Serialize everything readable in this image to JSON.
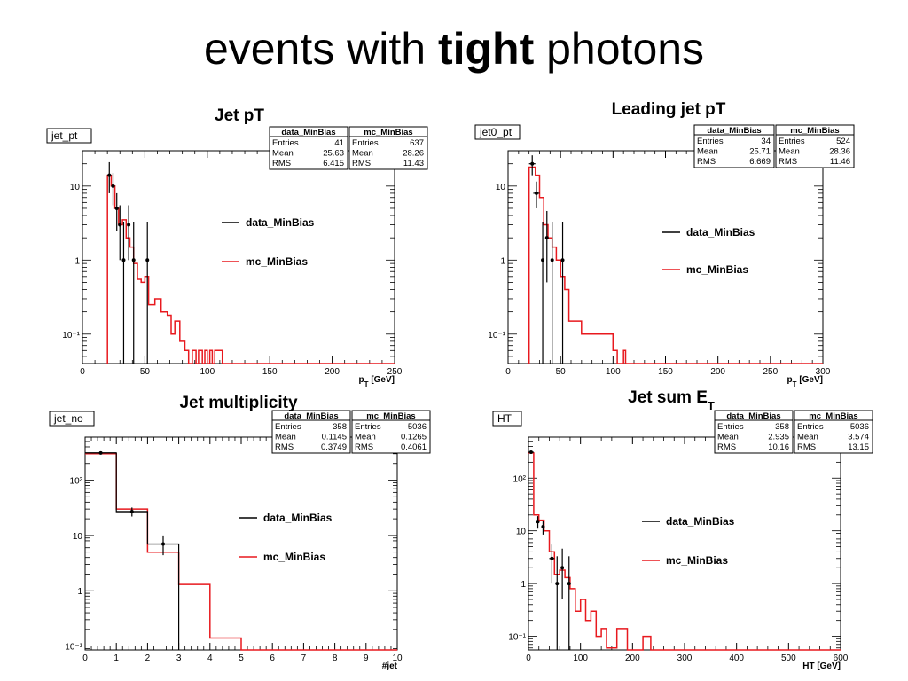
{
  "slide": {
    "title_prefix": "events with ",
    "title_bold": "tight",
    "title_suffix": " photons"
  },
  "colors": {
    "data": "#000000",
    "mc": "#e8191e"
  },
  "chart_data": [
    {
      "id": "jet_pt",
      "type": "histogram",
      "plot_title": "Jet pT",
      "plot_title_sub": "",
      "name": "jet_pt",
      "xlabel": "p_T [GeV]",
      "xlim": [
        0,
        250
      ],
      "xticks": [
        0,
        50,
        100,
        150,
        200,
        250
      ],
      "ylog": true,
      "ylim": [
        0.04,
        30
      ],
      "yticks": [
        {
          "v": 0.1,
          "label": "10⁻¹"
        },
        {
          "v": 1,
          "label": "1"
        },
        {
          "v": 10,
          "label": "10"
        }
      ],
      "legend": [
        "data_MinBias",
        "mc_MinBias"
      ],
      "stats": [
        {
          "name": "data_MinBias",
          "entries": "41",
          "mean": "25.63",
          "rms": "6.415"
        },
        {
          "name": "mc_MinBias",
          "entries": "637",
          "mean": "28.26",
          "rms": "11.43"
        }
      ],
      "mc_steps": [
        [
          20,
          0.04
        ],
        [
          20,
          14
        ],
        [
          23,
          10
        ],
        [
          26,
          5
        ],
        [
          29,
          3
        ],
        [
          32,
          3.5
        ],
        [
          35,
          2
        ],
        [
          38,
          1.5
        ],
        [
          41,
          0.9
        ],
        [
          44,
          0.55
        ],
        [
          47,
          0.5
        ],
        [
          50,
          0.6
        ],
        [
          53,
          0.25
        ],
        [
          58,
          0.3
        ],
        [
          63,
          0.2
        ],
        [
          68,
          0.18
        ],
        [
          71,
          0.1
        ],
        [
          74,
          0.15
        ],
        [
          78,
          0.08
        ],
        [
          82,
          0.06
        ],
        [
          85,
          0.04
        ],
        [
          88,
          0.06
        ],
        [
          91,
          0.04
        ],
        [
          93,
          0.06
        ],
        [
          96,
          0.04
        ],
        [
          98,
          0.06
        ],
        [
          100,
          0.04
        ],
        [
          102,
          0.06
        ],
        [
          104,
          0.04
        ],
        [
          106,
          0.06
        ],
        [
          112,
          0.04
        ],
        [
          250,
          0.04
        ]
      ],
      "data_points": [
        {
          "x": 21.5,
          "xerr": 1.5,
          "y": 14,
          "yerr_lo": 6,
          "yerr_hi": 7
        },
        {
          "x": 24.5,
          "xerr": 1.5,
          "y": 10,
          "yerr_lo": 4.5,
          "yerr_hi": 5
        },
        {
          "x": 27.5,
          "xerr": 1.5,
          "y": 5,
          "yerr_lo": 2.5,
          "yerr_hi": 3
        },
        {
          "x": 30,
          "xerr": 1,
          "y": 3,
          "yerr_lo": 2,
          "yerr_hi": 2.5
        },
        {
          "x": 33,
          "xerr": 1,
          "y": 1,
          "yerr_lo": 0.96,
          "yerr_hi": 2.3
        },
        {
          "x": 37,
          "xerr": 1,
          "y": 3,
          "yerr_lo": 2,
          "yerr_hi": 2.5
        },
        {
          "x": 41,
          "xerr": 1,
          "y": 1,
          "yerr_lo": 0.96,
          "yerr_hi": 2.3
        },
        {
          "x": 52,
          "xerr": 1,
          "y": 1,
          "yerr_lo": 0.96,
          "yerr_hi": 2.3
        }
      ]
    },
    {
      "id": "jet0_pt",
      "type": "histogram",
      "plot_title": "Leading jet pT",
      "plot_title_sub": "",
      "name": "jet0_pt",
      "xlabel": "p_T [GeV]",
      "xlim": [
        0,
        300
      ],
      "xticks": [
        0,
        50,
        100,
        150,
        200,
        250,
        300
      ],
      "ylog": true,
      "ylim": [
        0.04,
        30
      ],
      "yticks": [
        {
          "v": 0.1,
          "label": "10⁻¹"
        },
        {
          "v": 1,
          "label": "1"
        },
        {
          "v": 10,
          "label": "10"
        }
      ],
      "legend": [
        "data_MinBias",
        "mc_MinBias"
      ],
      "stats": [
        {
          "name": "data_MinBias",
          "entries": "34",
          "mean": "25.71",
          "rms": "6.669"
        },
        {
          "name": "mc_MinBias",
          "entries": "524",
          "mean": "28.36",
          "rms": "11.46"
        }
      ],
      "mc_steps": [
        [
          20,
          0.04
        ],
        [
          20,
          18
        ],
        [
          26,
          14
        ],
        [
          30,
          7
        ],
        [
          34,
          3
        ],
        [
          38,
          2
        ],
        [
          42,
          1.5
        ],
        [
          46,
          1
        ],
        [
          50,
          0.6
        ],
        [
          54,
          0.4
        ],
        [
          58,
          0.15
        ],
        [
          70,
          0.1
        ],
        [
          100,
          0.06
        ],
        [
          104,
          0.04
        ],
        [
          110,
          0.06
        ],
        [
          112,
          0.04
        ],
        [
          300,
          0.04
        ]
      ],
      "data_points": [
        {
          "x": 23,
          "xerr": 3,
          "y": 20,
          "yerr_lo": 6,
          "yerr_hi": 6
        },
        {
          "x": 27,
          "xerr": 3,
          "y": 8,
          "yerr_lo": 3,
          "yerr_hi": 3.5
        },
        {
          "x": 33,
          "xerr": 1,
          "y": 1,
          "yerr_lo": 0.96,
          "yerr_hi": 2.3
        },
        {
          "x": 37,
          "xerr": 1,
          "y": 2,
          "yerr_lo": 1.5,
          "yerr_hi": 2.6
        },
        {
          "x": 42,
          "xerr": 1,
          "y": 1,
          "yerr_lo": 0.96,
          "yerr_hi": 2.3
        },
        {
          "x": 52,
          "xerr": 1,
          "y": 1,
          "yerr_lo": 0.96,
          "yerr_hi": 2.3
        }
      ]
    },
    {
      "id": "jet_no",
      "type": "histogram",
      "plot_title": "Jet multiplicity",
      "plot_title_sub": "",
      "name": "jet_no",
      "xlabel": "#jet",
      "xlim": [
        0,
        10
      ],
      "xticks": [
        0,
        1,
        2,
        3,
        4,
        5,
        6,
        7,
        8,
        9,
        10
      ],
      "ylog": true,
      "ylim": [
        0.085,
        600
      ],
      "yticks": [
        {
          "v": 0.1,
          "label": "10⁻¹"
        },
        {
          "v": 1,
          "label": "1"
        },
        {
          "v": 10,
          "label": "10"
        },
        {
          "v": 100,
          "label": "10²"
        }
      ],
      "legend": [
        "data_MinBias",
        "mc_MinBias"
      ],
      "stats": [
        {
          "name": "data_MinBias",
          "entries": "358",
          "mean": "0.1145",
          "rms": "0.3749"
        },
        {
          "name": "mc_MinBias",
          "entries": "5036",
          "mean": "0.1265",
          "rms": "0.4061"
        }
      ],
      "mc_steps": [
        [
          0,
          300
        ],
        [
          1,
          30
        ],
        [
          2,
          5
        ],
        [
          3,
          1.3
        ],
        [
          4,
          0.14
        ],
        [
          5,
          0.085
        ],
        [
          10,
          0.085
        ]
      ],
      "data_steps": [
        [
          0,
          310
        ],
        [
          1,
          27
        ],
        [
          2,
          7
        ],
        [
          3,
          0.085
        ]
      ],
      "data_points": [
        {
          "x": 0.5,
          "xerr": 0.5,
          "y": 310,
          "yerr_lo": 18,
          "yerr_hi": 18
        },
        {
          "x": 1.5,
          "xerr": 0.5,
          "y": 27,
          "yerr_lo": 5,
          "yerr_hi": 5
        },
        {
          "x": 2.5,
          "xerr": 0.5,
          "y": 7,
          "yerr_lo": 2.6,
          "yerr_hi": 3
        }
      ]
    },
    {
      "id": "HT",
      "type": "histogram",
      "plot_title": "Jet sum E",
      "plot_title_sub": "T",
      "name": "HT",
      "xlabel": "HT [GeV]",
      "xlim": [
        0,
        600
      ],
      "xticks": [
        0,
        100,
        200,
        300,
        400,
        500,
        600
      ],
      "ylog": true,
      "ylim": [
        0.055,
        600
      ],
      "yticks": [
        {
          "v": 0.1,
          "label": "10⁻¹"
        },
        {
          "v": 1,
          "label": "1"
        },
        {
          "v": 10,
          "label": "10"
        },
        {
          "v": 100,
          "label": "10²"
        }
      ],
      "legend": [
        "data_MinBias",
        "mc_MinBias"
      ],
      "stats": [
        {
          "name": "data_MinBias",
          "entries": "358",
          "mean": "2.935",
          "rms": "10.16"
        },
        {
          "name": "mc_MinBias",
          "entries": "5036",
          "mean": "3.574",
          "rms": "13.15"
        }
      ],
      "mc_steps": [
        [
          0,
          300
        ],
        [
          10,
          300
        ],
        [
          10,
          20
        ],
        [
          20,
          16
        ],
        [
          30,
          10
        ],
        [
          40,
          4
        ],
        [
          50,
          1.5
        ],
        [
          60,
          1.8
        ],
        [
          70,
          1.3
        ],
        [
          80,
          0.8
        ],
        [
          90,
          0.3
        ],
        [
          100,
          0.5
        ],
        [
          110,
          0.2
        ],
        [
          120,
          0.3
        ],
        [
          130,
          0.1
        ],
        [
          140,
          0.14
        ],
        [
          150,
          0.06
        ],
        [
          170,
          0.14
        ],
        [
          190,
          0.055
        ],
        [
          220,
          0.1
        ],
        [
          235,
          0.055
        ],
        [
          600,
          0.055
        ]
      ],
      "data_points": [
        {
          "x": 5,
          "xerr": 5,
          "y": 310,
          "yerr_lo": 18,
          "yerr_hi": 18
        },
        {
          "x": 18,
          "xerr": 3,
          "y": 15,
          "yerr_lo": 4,
          "yerr_hi": 4
        },
        {
          "x": 28,
          "xerr": 3,
          "y": 12,
          "yerr_lo": 3.5,
          "yerr_hi": 3.5
        },
        {
          "x": 45,
          "xerr": 5,
          "y": 3,
          "yerr_lo": 2,
          "yerr_hi": 2.5
        },
        {
          "x": 55,
          "xerr": 3,
          "y": 1,
          "yerr_lo": 0.96,
          "yerr_hi": 2.3
        },
        {
          "x": 65,
          "xerr": 3,
          "y": 2,
          "yerr_lo": 1.5,
          "yerr_hi": 2.6
        },
        {
          "x": 78,
          "xerr": 3,
          "y": 1,
          "yerr_lo": 0.96,
          "yerr_hi": 2.3
        }
      ]
    }
  ]
}
